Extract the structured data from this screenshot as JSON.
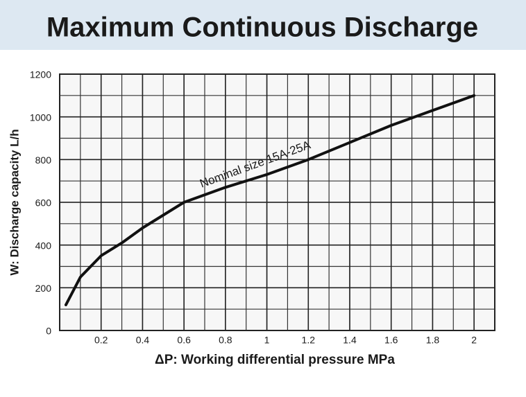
{
  "chart_data": {
    "type": "line",
    "title": "Maximum Continuous Discharge",
    "x_label": "ΔP: Working differential pressure  MPa",
    "y_label": "W: Discharge capacity  L/h",
    "annotation": "Nominal size 15A-25A",
    "x": [
      0.03,
      0.1,
      0.2,
      0.3,
      0.4,
      0.5,
      0.6,
      0.8,
      1.0,
      1.2,
      1.4,
      1.6,
      1.8,
      2.0
    ],
    "values": [
      120,
      250,
      350,
      410,
      480,
      540,
      600,
      670,
      730,
      800,
      880,
      960,
      1030,
      1100
    ],
    "color": "#111111",
    "xlim": [
      0,
      2.1
    ],
    "xticks": [
      0.2,
      0.4,
      0.6,
      0.8,
      1,
      1.2,
      1.4,
      1.6,
      1.8,
      2
    ],
    "ylim": [
      0,
      1200
    ],
    "yticks": [
      0,
      200,
      400,
      600,
      800,
      1000,
      1200
    ],
    "grid": true,
    "minor_grid": true
  }
}
